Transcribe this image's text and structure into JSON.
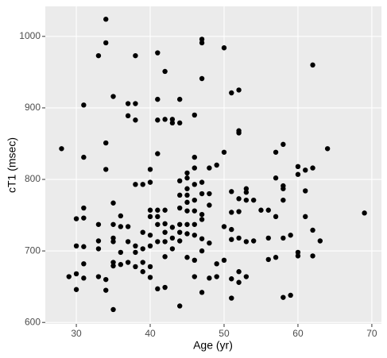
{
  "chart_data": {
    "type": "scatter",
    "x_label": "Age (yr)",
    "y_label": "cT1 (msec)",
    "color": "#000000",
    "grid": true,
    "xlim": [
      25.8,
      71.3
    ],
    "ylim": [
      598,
      1042
    ],
    "xticks": [
      30,
      40,
      50,
      60,
      70
    ],
    "yticks": [
      600,
      700,
      800,
      900,
      1000
    ],
    "x": [
      28,
      29,
      30,
      30,
      30,
      30,
      31,
      31,
      31,
      31,
      31,
      31,
      31,
      33,
      33,
      33,
      33,
      33,
      34,
      34,
      34,
      34,
      34,
      34,
      35,
      35,
      35,
      35,
      35,
      35,
      35,
      35,
      36,
      36,
      36,
      36,
      37,
      37,
      37,
      37,
      37,
      38,
      38,
      38,
      38,
      38,
      38,
      38,
      39,
      39,
      39,
      39,
      39,
      40,
      40,
      40,
      40,
      40,
      40,
      40,
      40,
      41,
      41,
      41,
      41,
      41,
      41,
      41,
      41,
      41,
      42,
      42,
      42,
      42,
      42,
      42,
      42,
      42,
      43,
      43,
      43,
      43,
      43,
      44,
      44,
      44,
      44,
      44,
      44,
      44,
      44,
      44,
      45,
      45,
      45,
      45,
      45,
      45,
      45,
      45,
      45,
      46,
      46,
      46,
      46,
      46,
      46,
      46,
      46,
      46,
      46,
      47,
      47,
      47,
      47,
      47,
      47,
      47,
      47,
      47,
      47,
      48,
      48,
      48,
      48,
      48,
      49,
      49,
      49,
      50,
      50,
      50,
      50,
      51,
      51,
      51,
      51,
      51,
      51,
      51,
      52,
      52,
      52,
      52,
      52,
      52,
      52,
      52,
      53,
      53,
      53,
      53,
      53,
      54,
      54,
      55,
      56,
      56,
      56,
      57,
      57,
      57,
      57,
      58,
      58,
      58,
      58,
      58,
      58,
      59,
      59,
      60,
      60,
      60,
      60,
      61,
      61,
      61,
      62,
      62,
      62,
      62,
      63,
      64,
      69
    ],
    "values": [
      843,
      664,
      745,
      707,
      668,
      646,
      904,
      831,
      760,
      746,
      706,
      682,
      662,
      973,
      737,
      714,
      703,
      664,
      1024,
      991,
      851,
      814,
      660,
      645,
      916,
      767,
      737,
      718,
      713,
      684,
      679,
      618,
      749,
      734,
      698,
      681,
      906,
      889,
      734,
      713,
      684,
      973,
      906,
      883,
      793,
      707,
      698,
      678,
      793,
      726,
      703,
      684,
      671,
      814,
      796,
      757,
      748,
      722,
      707,
      678,
      663,
      977,
      912,
      883,
      836,
      757,
      748,
      737,
      713,
      647,
      951,
      884,
      757,
      738,
      726,
      713,
      692,
      649,
      884,
      879,
      733,
      718,
      703,
      912,
      879,
      798,
      778,
      760,
      737,
      726,
      714,
      623,
      809,
      802,
      787,
      778,
      768,
      756,
      737,
      724,
      691,
      890,
      831,
      816,
      793,
      771,
      756,
      737,
      722,
      687,
      664,
      996,
      991,
      941,
      796,
      780,
      751,
      744,
      717,
      700,
      642,
      816,
      780,
      764,
      711,
      662,
      820,
      682,
      664,
      984,
      838,
      734,
      687,
      921,
      783,
      754,
      730,
      716,
      661,
      634,
      925,
      868,
      865,
      773,
      755,
      718,
      671,
      656,
      787,
      782,
      771,
      713,
      664,
      771,
      714,
      757,
      757,
      718,
      688,
      838,
      802,
      748,
      691,
      849,
      791,
      787,
      771,
      718,
      635,
      722,
      638,
      818,
      807,
      698,
      693,
      813,
      784,
      748,
      960,
      816,
      729,
      693,
      714,
      843,
      753
    ]
  }
}
